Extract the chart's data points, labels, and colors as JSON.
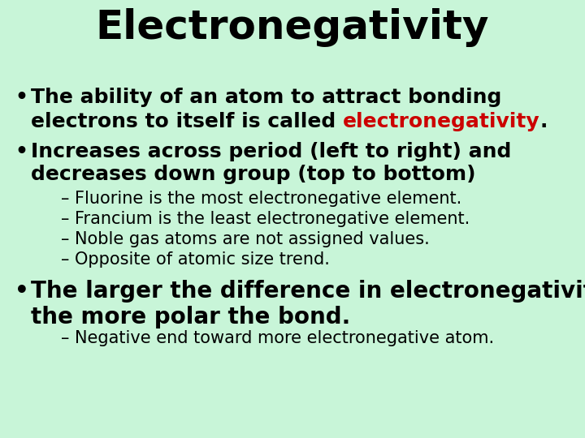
{
  "title": "Electronegativity",
  "title_fontsize": 36,
  "title_color": "#000000",
  "background_color": "#c8f5d8",
  "bullet_color": "#000000",
  "highlight_color": "#cc0000",
  "bullet1_line1": "The ability of an atom to attract bonding",
  "bullet1_line2_pre": "electrons to itself is called ",
  "bullet1_highlight": "electronegativity",
  "bullet1_end": ".",
  "bullet2_line1": "Increases across period (left to right) and",
  "bullet2_line2": "decreases down group (top to bottom)",
  "sub_bullets": [
    "– Fluorine is the most electronegative element.",
    "– Francium is the least electronegative element.",
    "– Noble gas atoms are not assigned values.",
    "– Opposite of atomic size trend."
  ],
  "bullet3_line1": "The larger the difference in electronegativity,",
  "bullet3_line2": "the more polar the bond.",
  "sub_bullet3": "– Negative end toward more electronegative atom.",
  "main_bullet_fontsize": 18,
  "sub_bullet_fontsize": 15,
  "bullet3_fontsize": 20
}
